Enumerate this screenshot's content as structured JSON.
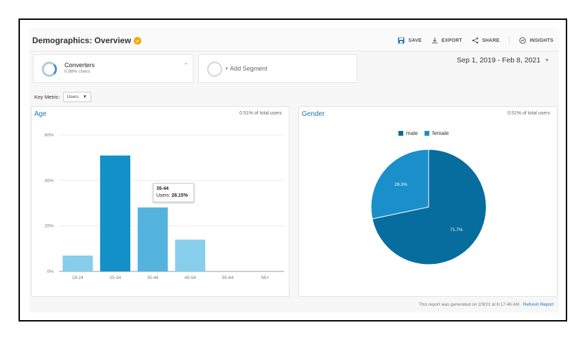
{
  "header": {
    "title": "Demographics: Overview",
    "save": "SAVE",
    "export": "EXPORT",
    "share": "SHARE",
    "insights": "INSIGHTS"
  },
  "segments": {
    "primary_name": "Converters",
    "primary_sub": "0.98% Users",
    "add": "+ Add Segment"
  },
  "date_range": "Sep 1, 2019 - Feb 8, 2021",
  "key_metric": {
    "label": "Key Metric:",
    "value": "Users"
  },
  "age_card": {
    "title": "Age",
    "share": "0.51% of total users"
  },
  "gender_card": {
    "title": "Gender",
    "share": "0.51% of total users"
  },
  "tooltip": {
    "category": "35-44",
    "label": "Users:",
    "value": "28.15%"
  },
  "footer": {
    "text": "This report was generated on 2/9/21 at 6:17:46 AM · ",
    "link": "Refresh Report"
  },
  "colors": {
    "male": "#076d9e",
    "female": "#1a8fc9",
    "bar_dark": "#1490c9",
    "bar_mid": "#53b3dd",
    "bar_light": "#86ceeb"
  },
  "chart_data": [
    {
      "type": "bar",
      "categories": [
        "18-24",
        "25-34",
        "35-44",
        "45-54",
        "55-64",
        "65+"
      ],
      "values": [
        7,
        51,
        28.15,
        14,
        0,
        0
      ],
      "ytick_labels": [
        "0%",
        "20%",
        "40%",
        "60%"
      ],
      "ylim": [
        0,
        60
      ],
      "grid": true
    },
    {
      "type": "pie",
      "series": [
        {
          "name": "male",
          "value": 71.7,
          "label": "71.7%"
        },
        {
          "name": "female",
          "value": 28.3,
          "label": "28.3%"
        }
      ],
      "legend": "top"
    }
  ]
}
